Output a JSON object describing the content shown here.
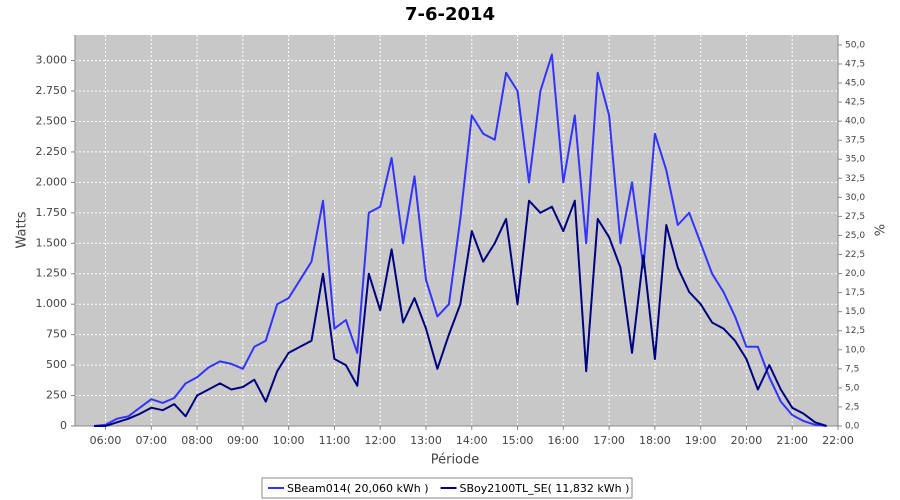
{
  "chart_data": {
    "type": "line",
    "title": "7-6-2014",
    "x_label": "Période",
    "y_label": "Watts",
    "y2_label": "%",
    "x": [
      "05:45",
      "06:00",
      "06:15",
      "06:30",
      "06:45",
      "07:00",
      "07:15",
      "07:30",
      "07:45",
      "08:00",
      "08:15",
      "08:30",
      "08:45",
      "09:00",
      "09:15",
      "09:30",
      "09:45",
      "10:00",
      "10:15",
      "10:30",
      "10:45",
      "11:00",
      "11:15",
      "11:30",
      "11:45",
      "12:00",
      "12:15",
      "12:30",
      "12:45",
      "13:00",
      "13:15",
      "13:30",
      "13:45",
      "14:00",
      "14:15",
      "14:30",
      "14:45",
      "15:00",
      "15:15",
      "15:30",
      "15:45",
      "16:00",
      "16:15",
      "16:30",
      "16:45",
      "17:00",
      "17:15",
      "17:30",
      "17:45",
      "18:00",
      "18:15",
      "18:30",
      "18:45",
      "19:00",
      "19:15",
      "19:30",
      "19:45",
      "20:00",
      "20:15",
      "20:30",
      "20:45",
      "21:00",
      "21:15",
      "21:30",
      "21:45"
    ],
    "series": [
      {
        "name": "SBeam014( 20,060 kWh )",
        "color": "#3333ff",
        "values": [
          0,
          10,
          60,
          80,
          150,
          220,
          190,
          230,
          350,
          400,
          480,
          530,
          510,
          470,
          650,
          700,
          1000,
          1050,
          1200,
          1350,
          1850,
          800,
          870,
          600,
          1750,
          1800,
          2200,
          1500,
          2050,
          1200,
          900,
          1000,
          1700,
          2550,
          2400,
          2350,
          2900,
          2750,
          2000,
          2750,
          3050,
          2000,
          2550,
          1500,
          2900,
          2550,
          1500,
          2000,
          1300,
          2400,
          2100,
          1650,
          1750,
          1500,
          1250,
          1100,
          900,
          650,
          650,
          400,
          200,
          90,
          40,
          10,
          0
        ]
      },
      {
        "name": "SBoy2100TL_SE( 11,832 kWh )",
        "color": "#000080",
        "values": [
          0,
          0,
          30,
          60,
          100,
          150,
          130,
          180,
          80,
          250,
          300,
          350,
          300,
          320,
          380,
          200,
          450,
          600,
          650,
          700,
          1250,
          550,
          500,
          330,
          1250,
          950,
          1450,
          850,
          1050,
          800,
          470,
          750,
          1000,
          1600,
          1350,
          1500,
          1700,
          1000,
          1850,
          1750,
          1800,
          1600,
          1850,
          450,
          1700,
          1550,
          1300,
          600,
          1400,
          550,
          1650,
          1300,
          1100,
          1000,
          850,
          800,
          700,
          550,
          300,
          500,
          300,
          150,
          100,
          30,
          0
        ]
      }
    ],
    "xlim": [
      "05:20",
      "22:00"
    ],
    "xticks": [
      "06:00",
      "07:00",
      "08:00",
      "09:00",
      "10:00",
      "11:00",
      "12:00",
      "13:00",
      "14:00",
      "15:00",
      "16:00",
      "17:00",
      "18:00",
      "19:00",
      "20:00",
      "21:00",
      "22:00"
    ],
    "ylim": [
      0,
      3210
    ],
    "yticks": [
      0,
      250,
      500,
      750,
      {
        "value": 1000,
        "label": "1.000"
      },
      {
        "value": 1250,
        "label": "1.250"
      },
      {
        "value": 1500,
        "label": "1.500"
      },
      {
        "value": 1750,
        "label": "1.750"
      },
      {
        "value": 2000,
        "label": "2.000"
      },
      {
        "value": 2250,
        "label": "2.250"
      },
      {
        "value": 2500,
        "label": "2.500"
      },
      {
        "value": 2750,
        "label": "2.750"
      },
      {
        "value": 3000,
        "label": "3.000"
      }
    ],
    "y2lim": [
      0,
      51.3
    ],
    "y2ticks": [
      {
        "value": 0,
        "label": "0,0"
      },
      {
        "value": 2.5,
        "label": "2,5"
      },
      {
        "value": 5,
        "label": "5,0"
      },
      {
        "value": 7.5,
        "label": "7,5"
      },
      {
        "value": 10,
        "label": "10,0"
      },
      {
        "value": 12.5,
        "label": "12,5"
      },
      {
        "value": 15,
        "label": "15,0"
      },
      {
        "value": 17.5,
        "label": "17,5"
      },
      {
        "value": 20,
        "label": "20,0"
      },
      {
        "value": 22.5,
        "label": "22,5"
      },
      {
        "value": 25,
        "label": "25,0"
      },
      {
        "value": 27.5,
        "label": "27,5"
      },
      {
        "value": 30,
        "label": "30,0"
      },
      {
        "value": 32.5,
        "label": "32,5"
      },
      {
        "value": 35,
        "label": "35,0"
      },
      {
        "value": 37.5,
        "label": "37,5"
      },
      {
        "value": 40,
        "label": "40,0"
      },
      {
        "value": 42.5,
        "label": "42,5"
      },
      {
        "value": 45,
        "label": "45,0"
      },
      {
        "value": 47.5,
        "label": "47,5"
      },
      {
        "value": 50,
        "label": "50,0"
      }
    ],
    "grid": true,
    "legend": "bottom"
  }
}
